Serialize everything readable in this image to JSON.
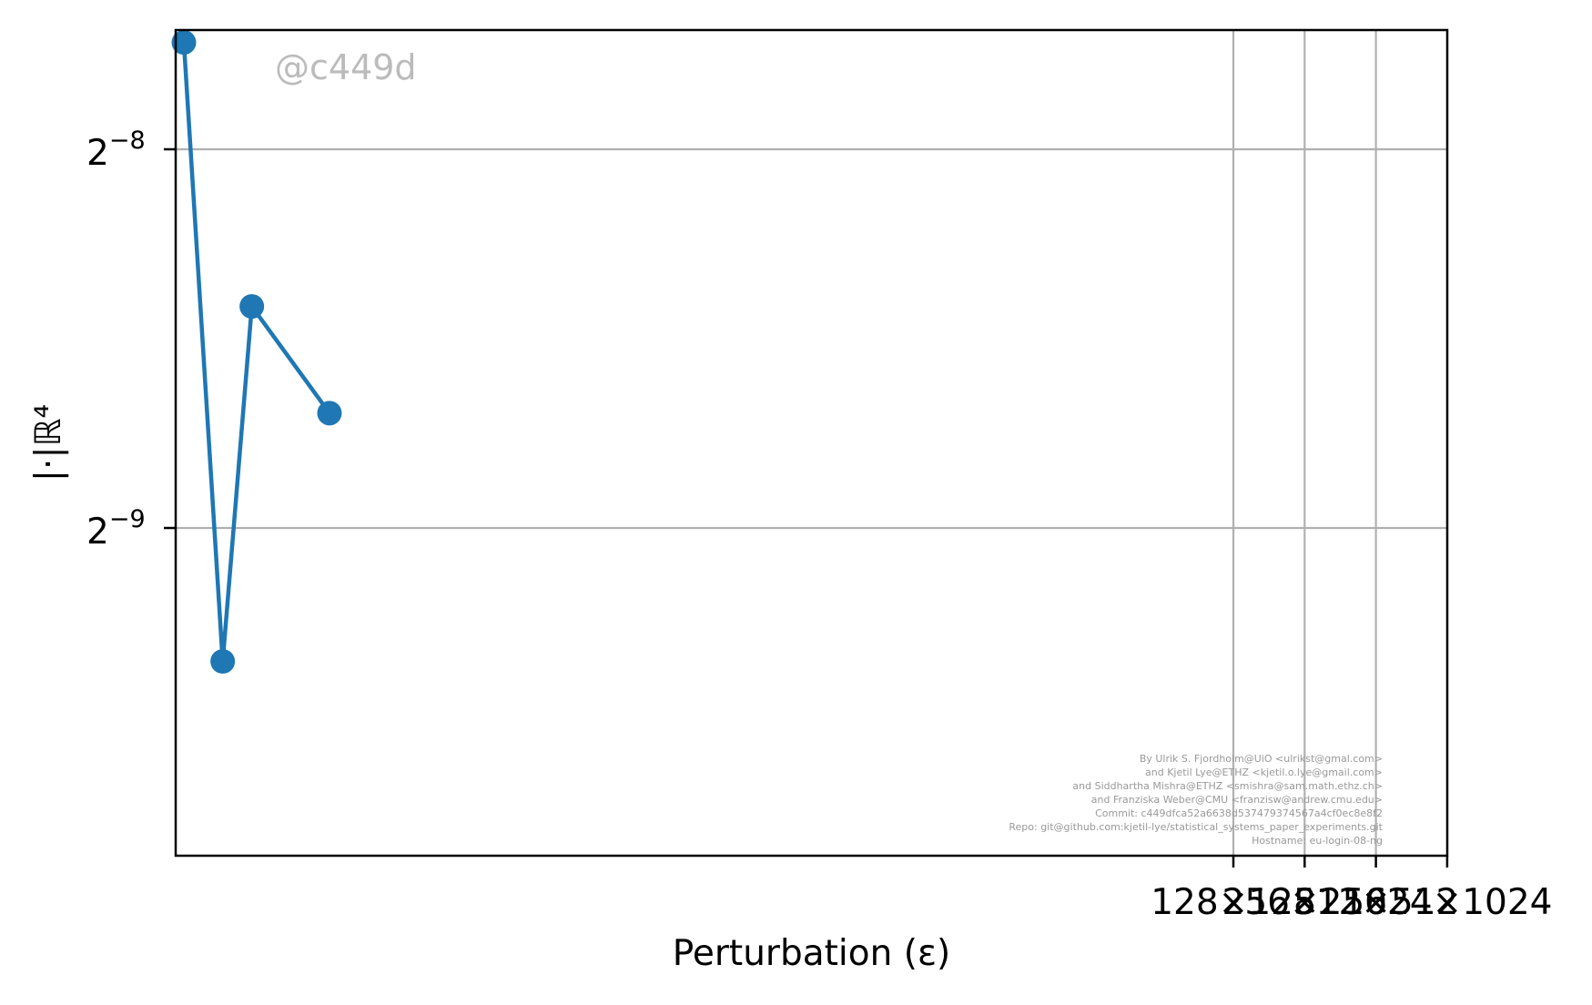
{
  "chart_data": {
    "type": "line",
    "title": "",
    "xlabel": "Perturbation (ε)",
    "ylabel": "|·|ℝ⁴",
    "yscale": "log2",
    "grid": true,
    "series": [
      {
        "marker": "circle",
        "color": "#1f77b4",
        "x": [
          0.005,
          0.025,
          0.04,
          0.08
        ],
        "y": [
          0.00475,
          0.00153,
          0.00293,
          0.00241
        ]
      }
    ],
    "xticks": [
      {
        "label": "128×128",
        "x": 128
      },
      {
        "label": "256×256",
        "x": 256
      },
      {
        "label": "512×512",
        "x": 512
      },
      {
        "label": "1024×1024",
        "x": 1024
      }
    ],
    "yticks": [
      {
        "base": "2",
        "exp": "−8",
        "value": 0.00390625
      },
      {
        "base": "2",
        "exp": "−9",
        "value": 0.001953125
      }
    ],
    "watermark": "@c449d",
    "credits": [
      "By Ulrik S. Fjordholm@UiO <ulrikst@gmal.com>",
      "and Kjetil Lye@ETHZ <kjetil.o.lye@gmail.com>",
      "and Siddhartha Mishra@ETHZ <smishra@sam.math.ethz.ch>",
      "and Franziska Weber@CMU <franzisw@andrew.cmu.edu>",
      "Commit: c449dfca52a6638d537479374567a4cf0ec8e8f2",
      "Repo: git@github.com:kjetil-lye/statistical_systems_paper_experiments.git",
      "Hostname: eu-login-08-ng"
    ],
    "colors": {
      "line": "#1f77b4",
      "grid": "#b0b0b0",
      "axes": "#000000",
      "watermark": "#bbbbbb",
      "credits": "#999999"
    }
  }
}
